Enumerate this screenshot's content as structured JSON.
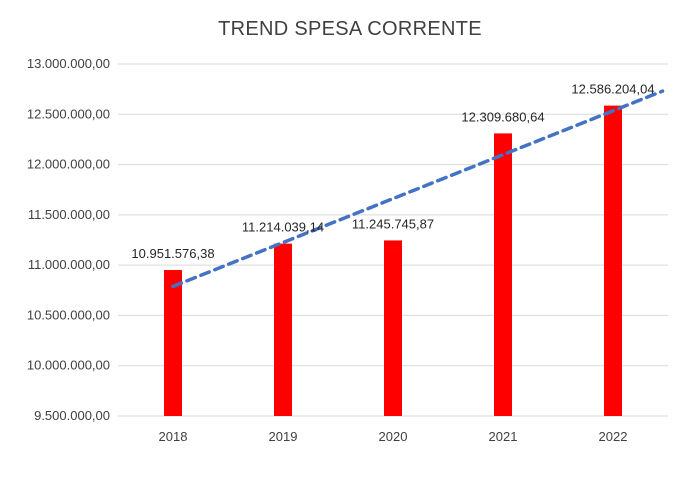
{
  "chart_data": {
    "type": "bar",
    "title": "TREND SPESA CORRENTE",
    "categories": [
      "2018",
      "2019",
      "2020",
      "2021",
      "2022"
    ],
    "values": [
      10951576.38,
      11214039.14,
      11245745.87,
      12309680.64,
      12586204.04
    ],
    "data_labels": [
      "10.951.576,38",
      "11.214.039,14",
      "11.245.745,87",
      "12.309.680,64",
      "12.586.204,04"
    ],
    "ylim": [
      9500000,
      13000000
    ],
    "y_ticks": [
      9500000,
      10000000,
      10500000,
      11000000,
      11500000,
      12000000,
      12500000,
      13000000
    ],
    "y_tick_labels": [
      "9.500.000,00",
      "10.000.000,00",
      "10.500.000,00",
      "11.000.000,00",
      "11.500.000,00",
      "12.000.000,00",
      "12.500.000,00",
      "13.000.000,00"
    ],
    "grid": true,
    "legend": "none",
    "trendline": {
      "type": "linear",
      "style": "dashed"
    },
    "colors": {
      "bar": "#ff0000",
      "trendline": "#4472c4",
      "grid": "#d9d9d9",
      "text": "#404040"
    }
  }
}
